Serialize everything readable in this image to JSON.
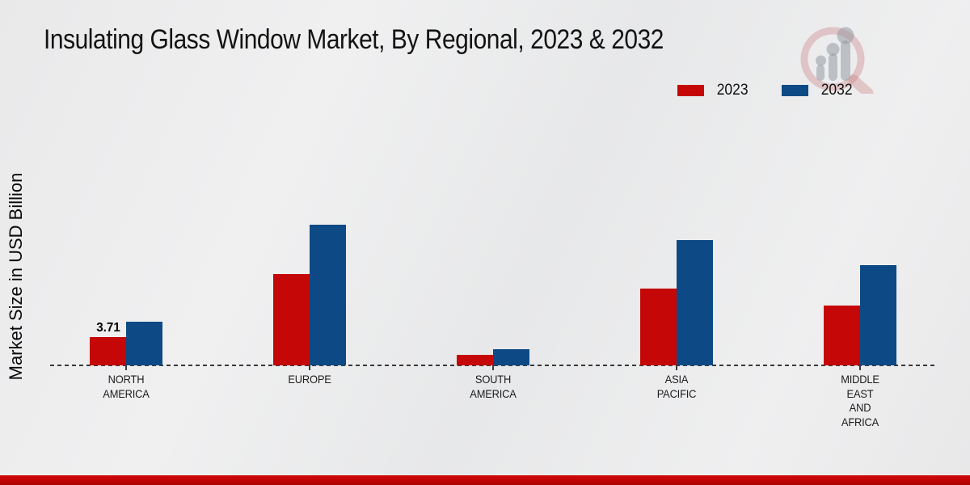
{
  "chart_data": {
    "type": "bar",
    "title": "Insulating Glass Window Market, By Regional, 2023 & 2032",
    "xlabel": "",
    "ylabel": "Market Size in USD Billion",
    "ylim": [
      0,
      20
    ],
    "grid": false,
    "legend_position": "top-right",
    "baseline_style": "dashed",
    "categories": [
      "NORTH AMERICA",
      "EUROPE",
      "SOUTH AMERICA",
      "ASIA PACIFIC",
      "MIDDLE EAST AND AFRICA"
    ],
    "category_label_lines": [
      [
        "NORTH",
        "AMERICA"
      ],
      [
        "EUROPE"
      ],
      [
        "SOUTH",
        "AMERICA"
      ],
      [
        "ASIA",
        "PACIFIC"
      ],
      [
        "MIDDLE",
        "EAST",
        "AND",
        "AFRICA"
      ]
    ],
    "series": [
      {
        "name": "2023",
        "color": "#c50707",
        "values": [
          3.71,
          12.0,
          1.4,
          10.0,
          7.8
        ]
      },
      {
        "name": "2032",
        "color": "#0d4a85",
        "values": [
          5.7,
          18.4,
          2.1,
          16.4,
          13.1
        ]
      }
    ],
    "data_labels": [
      {
        "series": "2023",
        "category_index": 0,
        "text": "3.71"
      }
    ]
  },
  "branding": {
    "logo_name": "market-research-future-watermark",
    "accent_bar_color": "#c00404"
  }
}
